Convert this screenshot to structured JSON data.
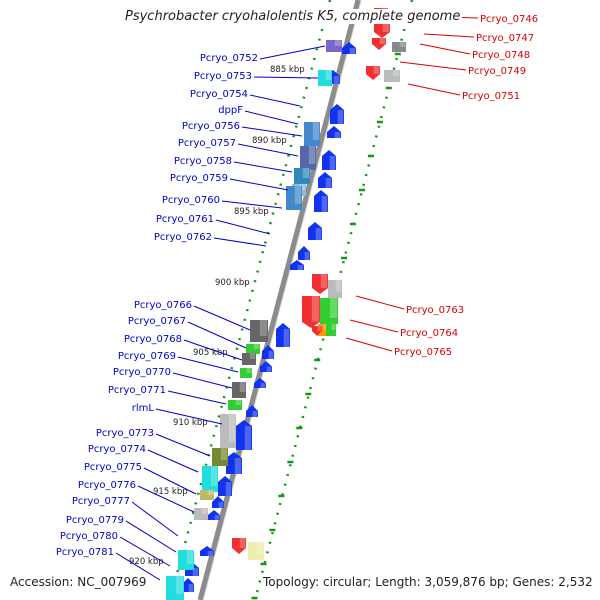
{
  "title": "Psychrobacter cryohalolentis K5, complete genome",
  "accession_label": "Accession: NC_007969",
  "summary_label": "Topology: circular; Length: 3,059,876 bp; Genes: 2,532",
  "colors": {
    "minus_strand_label": "#0000cc",
    "plus_strand_label": "#dd0000",
    "backbone": "#8c8c8c",
    "tick": "#119911"
  },
  "scale_labels": [
    "885 kbp",
    "890 kbp",
    "895 kbp",
    "900 kbp",
    "905 kbp",
    "910 kbp",
    "915 kbp",
    "920 kbp"
  ],
  "plus_genes": [
    {
      "label": "Pcryo_0746",
      "color": "#f03030"
    },
    {
      "label": "Pcryo_0747",
      "color": "#f03030"
    },
    {
      "label": "Pcryo_0748",
      "color": "#888888"
    },
    {
      "label": "Pcryo_0749",
      "color": "#f03030"
    },
    {
      "label": "Pcryo_0751",
      "color": "#bbbbbb"
    },
    {
      "label": "Pcryo_0763",
      "color": "#f03030"
    },
    {
      "label": "Pcryo_0764",
      "color": "#33cc33"
    },
    {
      "label": "Pcryo_0765",
      "color": "#ff9900"
    }
  ],
  "minus_genes": [
    {
      "label": "Pcryo_0752",
      "color": "#7766cc"
    },
    {
      "label": "Pcryo_0753",
      "color": "#22dddd"
    },
    {
      "label": "Pcryo_0754",
      "color": "#1133ee"
    },
    {
      "label": "dppF",
      "color": "#1133ee"
    },
    {
      "label": "Pcryo_0756",
      "color": "#4488cc"
    },
    {
      "label": "Pcryo_0757",
      "color": "#5566aa"
    },
    {
      "label": "Pcryo_0758",
      "color": "#3388bb"
    },
    {
      "label": "Pcryo_0759",
      "color": "#88bbdd"
    },
    {
      "label": "Pcryo_0760",
      "color": "#4488cc"
    },
    {
      "label": "Pcryo_0761",
      "color": "#1133ee"
    },
    {
      "label": "Pcryo_0762",
      "color": "#1133ee"
    },
    {
      "label": "Pcryo_0766",
      "color": "#666666"
    },
    {
      "label": "Pcryo_0767",
      "color": "#33cc33"
    },
    {
      "label": "Pcryo_0768",
      "color": "#666666"
    },
    {
      "label": "Pcryo_0769",
      "color": "#33cc33"
    },
    {
      "label": "Pcryo_0770",
      "color": "#666666"
    },
    {
      "label": "Pcryo_0771",
      "color": "#33cc33"
    },
    {
      "label": "rlmL",
      "color": "#bbbbbb"
    },
    {
      "label": "Pcryo_0773",
      "color": "#778833"
    },
    {
      "label": "Pcryo_0774",
      "color": "#22dddd"
    },
    {
      "label": "Pcryo_0775",
      "color": "#bbbb66"
    },
    {
      "label": "Pcryo_0776",
      "color": "#1133ee"
    },
    {
      "label": "Pcryo_0777",
      "color": "#bbbbbb"
    },
    {
      "label": "Pcryo_0779",
      "color": "#1133ee"
    },
    {
      "label": "Pcryo_0780",
      "color": "#22dddd"
    },
    {
      "label": "Pcryo_0781",
      "color": "#22dddd"
    }
  ]
}
